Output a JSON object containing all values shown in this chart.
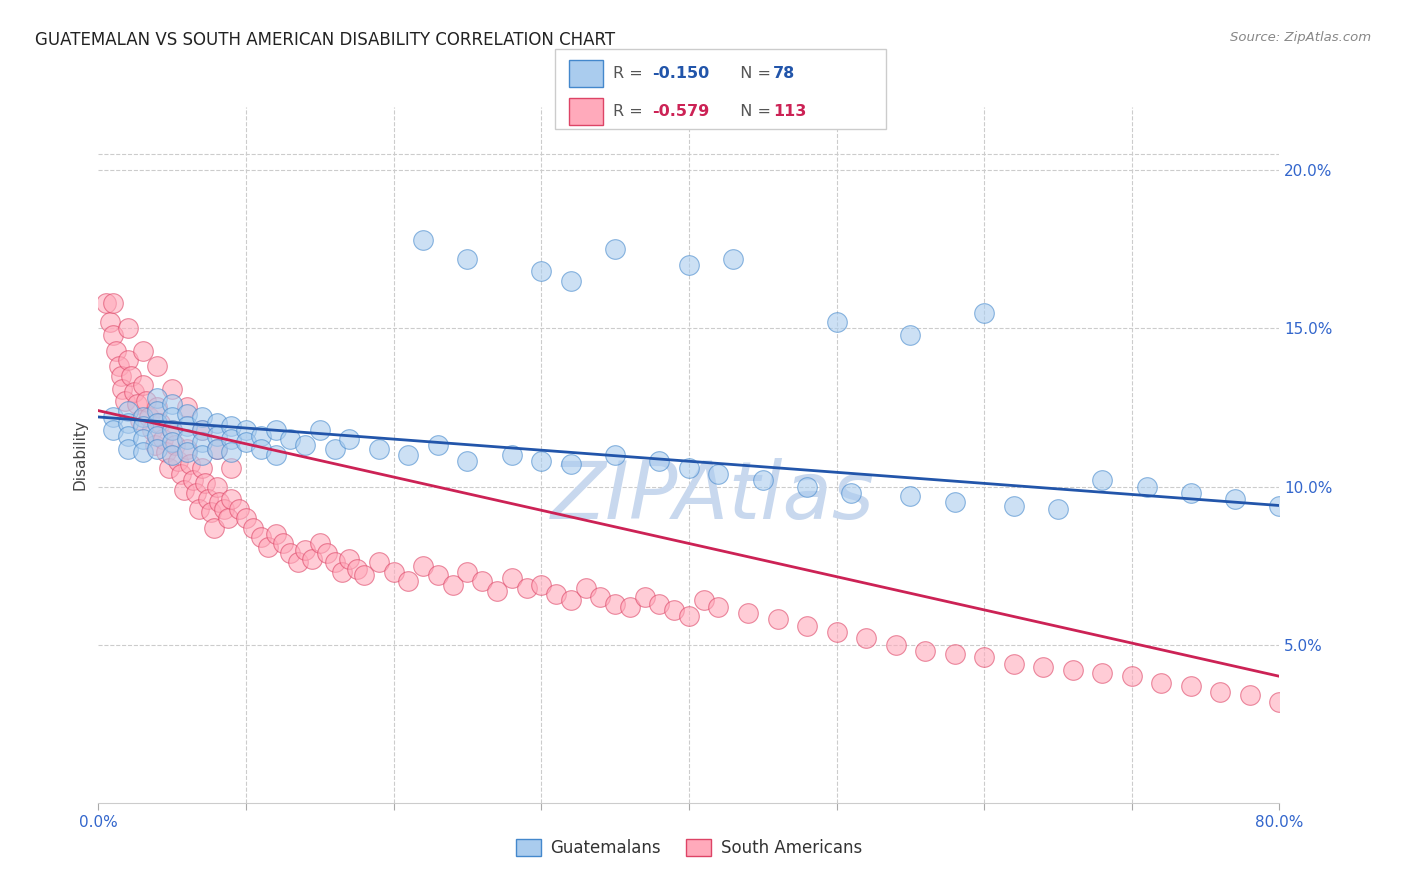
{
  "title": "GUATEMALAN VS SOUTH AMERICAN DISABILITY CORRELATION CHART",
  "source": "Source: ZipAtlas.com",
  "ylabel": "Disability",
  "blue_label": "Guatemalans",
  "pink_label": "South Americans",
  "r_blue": "-0.150",
  "n_blue": "78",
  "r_pink": "-0.579",
  "n_pink": "113",
  "blue_fill": "#AACCEE",
  "blue_edge": "#4488CC",
  "pink_fill": "#FFAABB",
  "pink_edge": "#DD4466",
  "blue_line_col": "#2255AA",
  "pink_line_col": "#CC2255",
  "watermark_col": "#C8D8EE",
  "tick_col": "#3366CC",
  "xlim": [
    0.0,
    0.8
  ],
  "ylim": [
    0.0,
    0.22
  ],
  "ytick_pos": [
    0.05,
    0.1,
    0.15,
    0.2
  ],
  "ytick_labels": [
    "5.0%",
    "10.0%",
    "15.0%",
    "20.0%"
  ],
  "blue_reg": [
    0.0,
    0.8,
    0.122,
    0.094
  ],
  "pink_reg": [
    0.0,
    0.8,
    0.124,
    0.04
  ],
  "blue_x": [
    0.01,
    0.01,
    0.02,
    0.02,
    0.02,
    0.02,
    0.03,
    0.03,
    0.03,
    0.03,
    0.04,
    0.04,
    0.04,
    0.04,
    0.04,
    0.05,
    0.05,
    0.05,
    0.05,
    0.05,
    0.06,
    0.06,
    0.06,
    0.06,
    0.07,
    0.07,
    0.07,
    0.07,
    0.08,
    0.08,
    0.08,
    0.09,
    0.09,
    0.09,
    0.1,
    0.1,
    0.11,
    0.11,
    0.12,
    0.12,
    0.13,
    0.14,
    0.15,
    0.16,
    0.17,
    0.19,
    0.21,
    0.23,
    0.25,
    0.28,
    0.3,
    0.32,
    0.35,
    0.38,
    0.4,
    0.42,
    0.45,
    0.48,
    0.51,
    0.55,
    0.58,
    0.62,
    0.65,
    0.68,
    0.71,
    0.74,
    0.77,
    0.8,
    0.22,
    0.25,
    0.3,
    0.32,
    0.35,
    0.4,
    0.43,
    0.5,
    0.55,
    0.6
  ],
  "blue_y": [
    0.122,
    0.118,
    0.124,
    0.12,
    0.116,
    0.112,
    0.122,
    0.119,
    0.115,
    0.111,
    0.128,
    0.124,
    0.12,
    0.116,
    0.112,
    0.126,
    0.122,
    0.118,
    0.114,
    0.11,
    0.123,
    0.119,
    0.115,
    0.111,
    0.122,
    0.118,
    0.114,
    0.11,
    0.12,
    0.116,
    0.112,
    0.119,
    0.115,
    0.111,
    0.118,
    0.114,
    0.116,
    0.112,
    0.118,
    0.11,
    0.115,
    0.113,
    0.118,
    0.112,
    0.115,
    0.112,
    0.11,
    0.113,
    0.108,
    0.11,
    0.108,
    0.107,
    0.11,
    0.108,
    0.106,
    0.104,
    0.102,
    0.1,
    0.098,
    0.097,
    0.095,
    0.094,
    0.093,
    0.102,
    0.1,
    0.098,
    0.096,
    0.094,
    0.178,
    0.172,
    0.168,
    0.165,
    0.175,
    0.17,
    0.172,
    0.152,
    0.148,
    0.155
  ],
  "pink_x": [
    0.005,
    0.008,
    0.01,
    0.012,
    0.014,
    0.015,
    0.016,
    0.018,
    0.02,
    0.022,
    0.024,
    0.026,
    0.028,
    0.03,
    0.032,
    0.034,
    0.036,
    0.038,
    0.04,
    0.042,
    0.044,
    0.046,
    0.048,
    0.05,
    0.052,
    0.054,
    0.056,
    0.058,
    0.06,
    0.062,
    0.064,
    0.066,
    0.068,
    0.07,
    0.072,
    0.074,
    0.076,
    0.078,
    0.08,
    0.082,
    0.085,
    0.088,
    0.09,
    0.095,
    0.1,
    0.105,
    0.11,
    0.115,
    0.12,
    0.125,
    0.13,
    0.135,
    0.14,
    0.145,
    0.15,
    0.155,
    0.16,
    0.165,
    0.17,
    0.175,
    0.18,
    0.19,
    0.2,
    0.21,
    0.22,
    0.23,
    0.24,
    0.25,
    0.26,
    0.27,
    0.28,
    0.29,
    0.3,
    0.31,
    0.32,
    0.33,
    0.34,
    0.35,
    0.36,
    0.37,
    0.38,
    0.39,
    0.4,
    0.41,
    0.42,
    0.44,
    0.46,
    0.48,
    0.5,
    0.52,
    0.54,
    0.56,
    0.58,
    0.6,
    0.62,
    0.64,
    0.66,
    0.68,
    0.7,
    0.72,
    0.74,
    0.76,
    0.78,
    0.8,
    0.01,
    0.02,
    0.03,
    0.04,
    0.05,
    0.06,
    0.07,
    0.08,
    0.09
  ],
  "pink_y": [
    0.158,
    0.152,
    0.148,
    0.143,
    0.138,
    0.135,
    0.131,
    0.127,
    0.14,
    0.135,
    0.13,
    0.126,
    0.121,
    0.132,
    0.127,
    0.122,
    0.118,
    0.113,
    0.125,
    0.12,
    0.115,
    0.111,
    0.106,
    0.118,
    0.113,
    0.108,
    0.104,
    0.099,
    0.112,
    0.107,
    0.102,
    0.098,
    0.093,
    0.106,
    0.101,
    0.096,
    0.092,
    0.087,
    0.1,
    0.095,
    0.093,
    0.09,
    0.096,
    0.093,
    0.09,
    0.087,
    0.084,
    0.081,
    0.085,
    0.082,
    0.079,
    0.076,
    0.08,
    0.077,
    0.082,
    0.079,
    0.076,
    0.073,
    0.077,
    0.074,
    0.072,
    0.076,
    0.073,
    0.07,
    0.075,
    0.072,
    0.069,
    0.073,
    0.07,
    0.067,
    0.071,
    0.068,
    0.069,
    0.066,
    0.064,
    0.068,
    0.065,
    0.063,
    0.062,
    0.065,
    0.063,
    0.061,
    0.059,
    0.064,
    0.062,
    0.06,
    0.058,
    0.056,
    0.054,
    0.052,
    0.05,
    0.048,
    0.047,
    0.046,
    0.044,
    0.043,
    0.042,
    0.041,
    0.04,
    0.038,
    0.037,
    0.035,
    0.034,
    0.032,
    0.158,
    0.15,
    0.143,
    0.138,
    0.131,
    0.125,
    0.118,
    0.112,
    0.106
  ]
}
